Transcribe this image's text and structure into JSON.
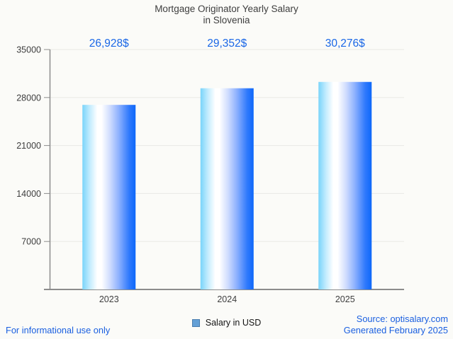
{
  "title": {
    "line1": "Mortgage Originator Yearly Salary",
    "line2": "in Slovenia"
  },
  "chart_data": {
    "type": "bar",
    "title": "Mortgage Originator Yearly Salary in Slovenia",
    "categories": [
      "2023",
      "2024",
      "2025"
    ],
    "series": [
      {
        "name": "Salary in USD",
        "values": [
          26928,
          29352,
          30276
        ]
      }
    ],
    "value_labels": [
      "26,928$",
      "29,352$",
      "30,276$"
    ],
    "xlabel": "",
    "ylabel": "",
    "ylim": [
      0,
      35000
    ],
    "yticks": [
      7000,
      14000,
      21000,
      28000,
      35000
    ],
    "grid": true,
    "legend_position": "bottom",
    "colors": {
      "value_label": "#1a67e6",
      "axis_line": "#8c8c8c",
      "gridline": "#e9e9e5",
      "tick_label": "#3e3e3e",
      "bar_gradient_stops": [
        {
          "offset": 0.0,
          "color": "#79d4fa"
        },
        {
          "offset": 0.14,
          "color": "#c3ecfe"
        },
        {
          "offset": 0.28,
          "color": "#ffffff"
        },
        {
          "offset": 0.36,
          "color": "#ffffff"
        },
        {
          "offset": 0.52,
          "color": "#cfdcfe"
        },
        {
          "offset": 0.68,
          "color": "#8fb2fe"
        },
        {
          "offset": 0.88,
          "color": "#2f79fc"
        },
        {
          "offset": 1.0,
          "color": "#0d68fa"
        }
      ]
    }
  },
  "legend": {
    "label": "Salary in USD",
    "marker_fill": "#64a0d6",
    "marker_border": "#4a7dae"
  },
  "footer": {
    "disclaimer": "For informational use only",
    "source": "Source: optisalary.com",
    "generated": "Generated February 2025"
  }
}
